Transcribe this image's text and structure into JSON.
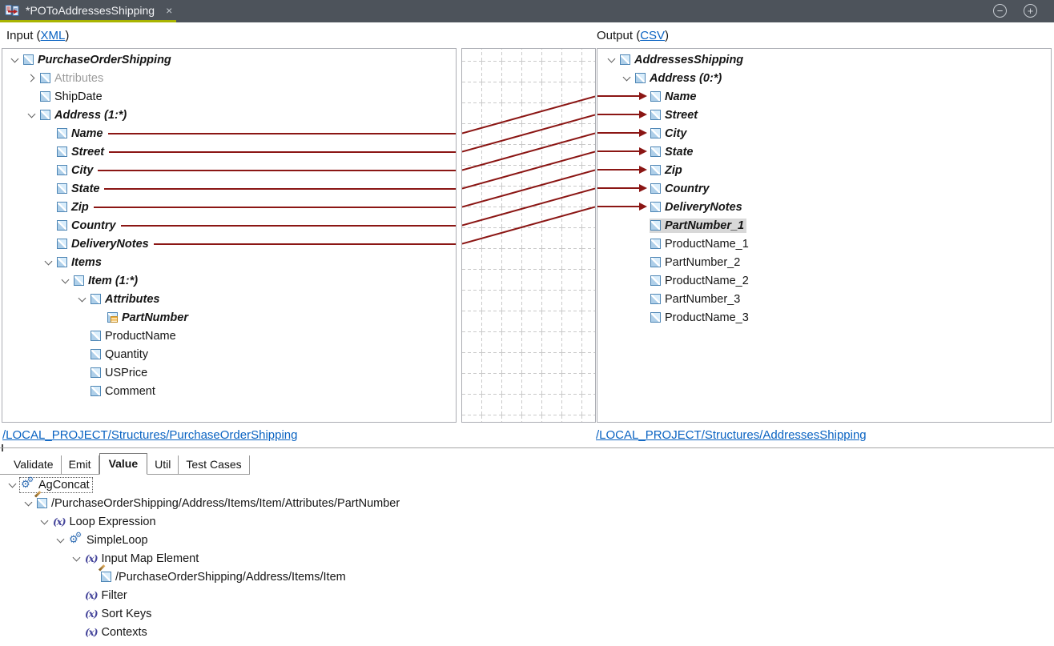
{
  "window": {
    "tab_title": "*POToAddressesShipping",
    "close_glyph": "×",
    "zoom_out_glyph": "−",
    "zoom_in_glyph": "+"
  },
  "colors": {
    "tab_bar_bg": "#4d535b",
    "active_tab_underline": "#a9b400",
    "mapping_line": "#8b1614",
    "link": "#0a63c2",
    "selection_bg": "#d8d8d8"
  },
  "icons": {
    "gear_glyph": "⚙",
    "fx_glyph": "(x)"
  },
  "input_panel": {
    "label_prefix": "Input (",
    "format_link": "XML",
    "label_suffix": ")",
    "structure_link": "/LOCAL_PROJECT/Structures/PurchaseOrderShipping",
    "tree": {
      "nodes": [
        {
          "label": "PurchaseOrderShipping",
          "level": 0,
          "chevron": "down",
          "icon": "element",
          "emphasis": true
        },
        {
          "label": "Attributes",
          "level": 1,
          "chevron": "right",
          "icon": "element",
          "muted": true
        },
        {
          "label": "ShipDate",
          "level": 1,
          "icon": "element"
        },
        {
          "label": "Address (1:*)",
          "level": 1,
          "chevron": "down",
          "icon": "element",
          "emphasis": true
        },
        {
          "label": "Name",
          "level": 2,
          "icon": "element",
          "emphasis": true,
          "mapped": true
        },
        {
          "label": "Street",
          "level": 2,
          "icon": "element",
          "emphasis": true,
          "mapped": true
        },
        {
          "label": "City",
          "level": 2,
          "icon": "element",
          "emphasis": true,
          "mapped": true
        },
        {
          "label": "State",
          "level": 2,
          "icon": "element",
          "emphasis": true,
          "mapped": true
        },
        {
          "label": "Zip",
          "level": 2,
          "icon": "element",
          "emphasis": true,
          "mapped": true
        },
        {
          "label": "Country",
          "level": 2,
          "icon": "element",
          "emphasis": true,
          "mapped": true
        },
        {
          "label": "DeliveryNotes",
          "level": 2,
          "icon": "element",
          "emphasis": true,
          "mapped": true
        },
        {
          "label": "Items",
          "level": 2,
          "chevron": "down",
          "icon": "element",
          "emphasis": true
        },
        {
          "label": "Item (1:*)",
          "level": 3,
          "chevron": "down",
          "icon": "element",
          "emphasis": true
        },
        {
          "label": "Attributes",
          "level": 4,
          "chevron": "down",
          "icon": "element",
          "emphasis": true
        },
        {
          "label": "PartNumber",
          "level": 5,
          "icon": "attribute",
          "emphasis": true
        },
        {
          "label": "ProductName",
          "level": 4,
          "icon": "element"
        },
        {
          "label": "Quantity",
          "level": 4,
          "icon": "element"
        },
        {
          "label": "USPrice",
          "level": 4,
          "icon": "element"
        },
        {
          "label": "Comment",
          "level": 4,
          "icon": "element"
        }
      ]
    }
  },
  "output_panel": {
    "label_prefix": "Output (",
    "format_link": "CSV",
    "label_suffix": ")",
    "structure_link": "/LOCAL_PROJECT/Structures/AddressesShipping",
    "tree": {
      "nodes": [
        {
          "label": "AddressesShipping",
          "level": 0,
          "chevron": "down",
          "icon": "element",
          "emphasis": true
        },
        {
          "label": "Address (0:*)",
          "level": 1,
          "chevron": "down",
          "icon": "element",
          "emphasis": true
        },
        {
          "label": "Name",
          "level": 2,
          "icon": "element",
          "emphasis": true,
          "arrow": true
        },
        {
          "label": "Street",
          "level": 2,
          "icon": "element",
          "emphasis": true,
          "arrow": true
        },
        {
          "label": "City",
          "level": 2,
          "icon": "element",
          "emphasis": true,
          "arrow": true
        },
        {
          "label": "State",
          "level": 2,
          "icon": "element",
          "emphasis": true,
          "arrow": true
        },
        {
          "label": "Zip",
          "level": 2,
          "icon": "element",
          "emphasis": true,
          "arrow": true
        },
        {
          "label": "Country",
          "level": 2,
          "icon": "element",
          "emphasis": true,
          "arrow": true
        },
        {
          "label": "DeliveryNotes",
          "level": 2,
          "icon": "element",
          "emphasis": true,
          "arrow": true
        },
        {
          "label": "PartNumber_1",
          "level": 2,
          "icon": "element",
          "emphasis": true,
          "selected": true
        },
        {
          "label": "ProductName_1",
          "level": 2,
          "icon": "element"
        },
        {
          "label": "PartNumber_2",
          "level": 2,
          "icon": "element"
        },
        {
          "label": "ProductName_2",
          "level": 2,
          "icon": "element"
        },
        {
          "label": "PartNumber_3",
          "level": 2,
          "icon": "element"
        },
        {
          "label": "ProductName_3",
          "level": 2,
          "icon": "element"
        }
      ]
    }
  },
  "mappings": [
    {
      "source": "Name",
      "target": "Name"
    },
    {
      "source": "Street",
      "target": "Street"
    },
    {
      "source": "City",
      "target": "City"
    },
    {
      "source": "State",
      "target": "State"
    },
    {
      "source": "Zip",
      "target": "Zip"
    },
    {
      "source": "Country",
      "target": "Country"
    },
    {
      "source": "DeliveryNotes",
      "target": "DeliveryNotes"
    }
  ],
  "bottom_panel": {
    "tabs": [
      {
        "label": "Validate"
      },
      {
        "label": "Emit"
      },
      {
        "label": "Value",
        "selected": true
      },
      {
        "label": "Util"
      },
      {
        "label": "Test Cases"
      }
    ],
    "tree": {
      "nodes": [
        {
          "label": "AgConcat",
          "level": 0,
          "chevron": "down",
          "icon": "gears",
          "focus": true
        },
        {
          "label": "/PurchaseOrderShipping/Address/Items/Item/Attributes/PartNumber",
          "level": 1,
          "chevron": "down",
          "icon": "element-edit"
        },
        {
          "label": "Loop Expression",
          "level": 2,
          "chevron": "down",
          "icon": "fx"
        },
        {
          "label": "SimpleLoop",
          "level": 3,
          "chevron": "down",
          "icon": "gears"
        },
        {
          "label": "Input Map Element",
          "level": 4,
          "chevron": "down",
          "icon": "fx"
        },
        {
          "label": "/PurchaseOrderShipping/Address/Items/Item",
          "level": 5,
          "icon": "element-edit"
        },
        {
          "label": "Filter",
          "level": 4,
          "icon": "fx"
        },
        {
          "label": "Sort Keys",
          "level": 4,
          "icon": "fx"
        },
        {
          "label": "Contexts",
          "level": 4,
          "icon": "fx"
        }
      ]
    }
  }
}
